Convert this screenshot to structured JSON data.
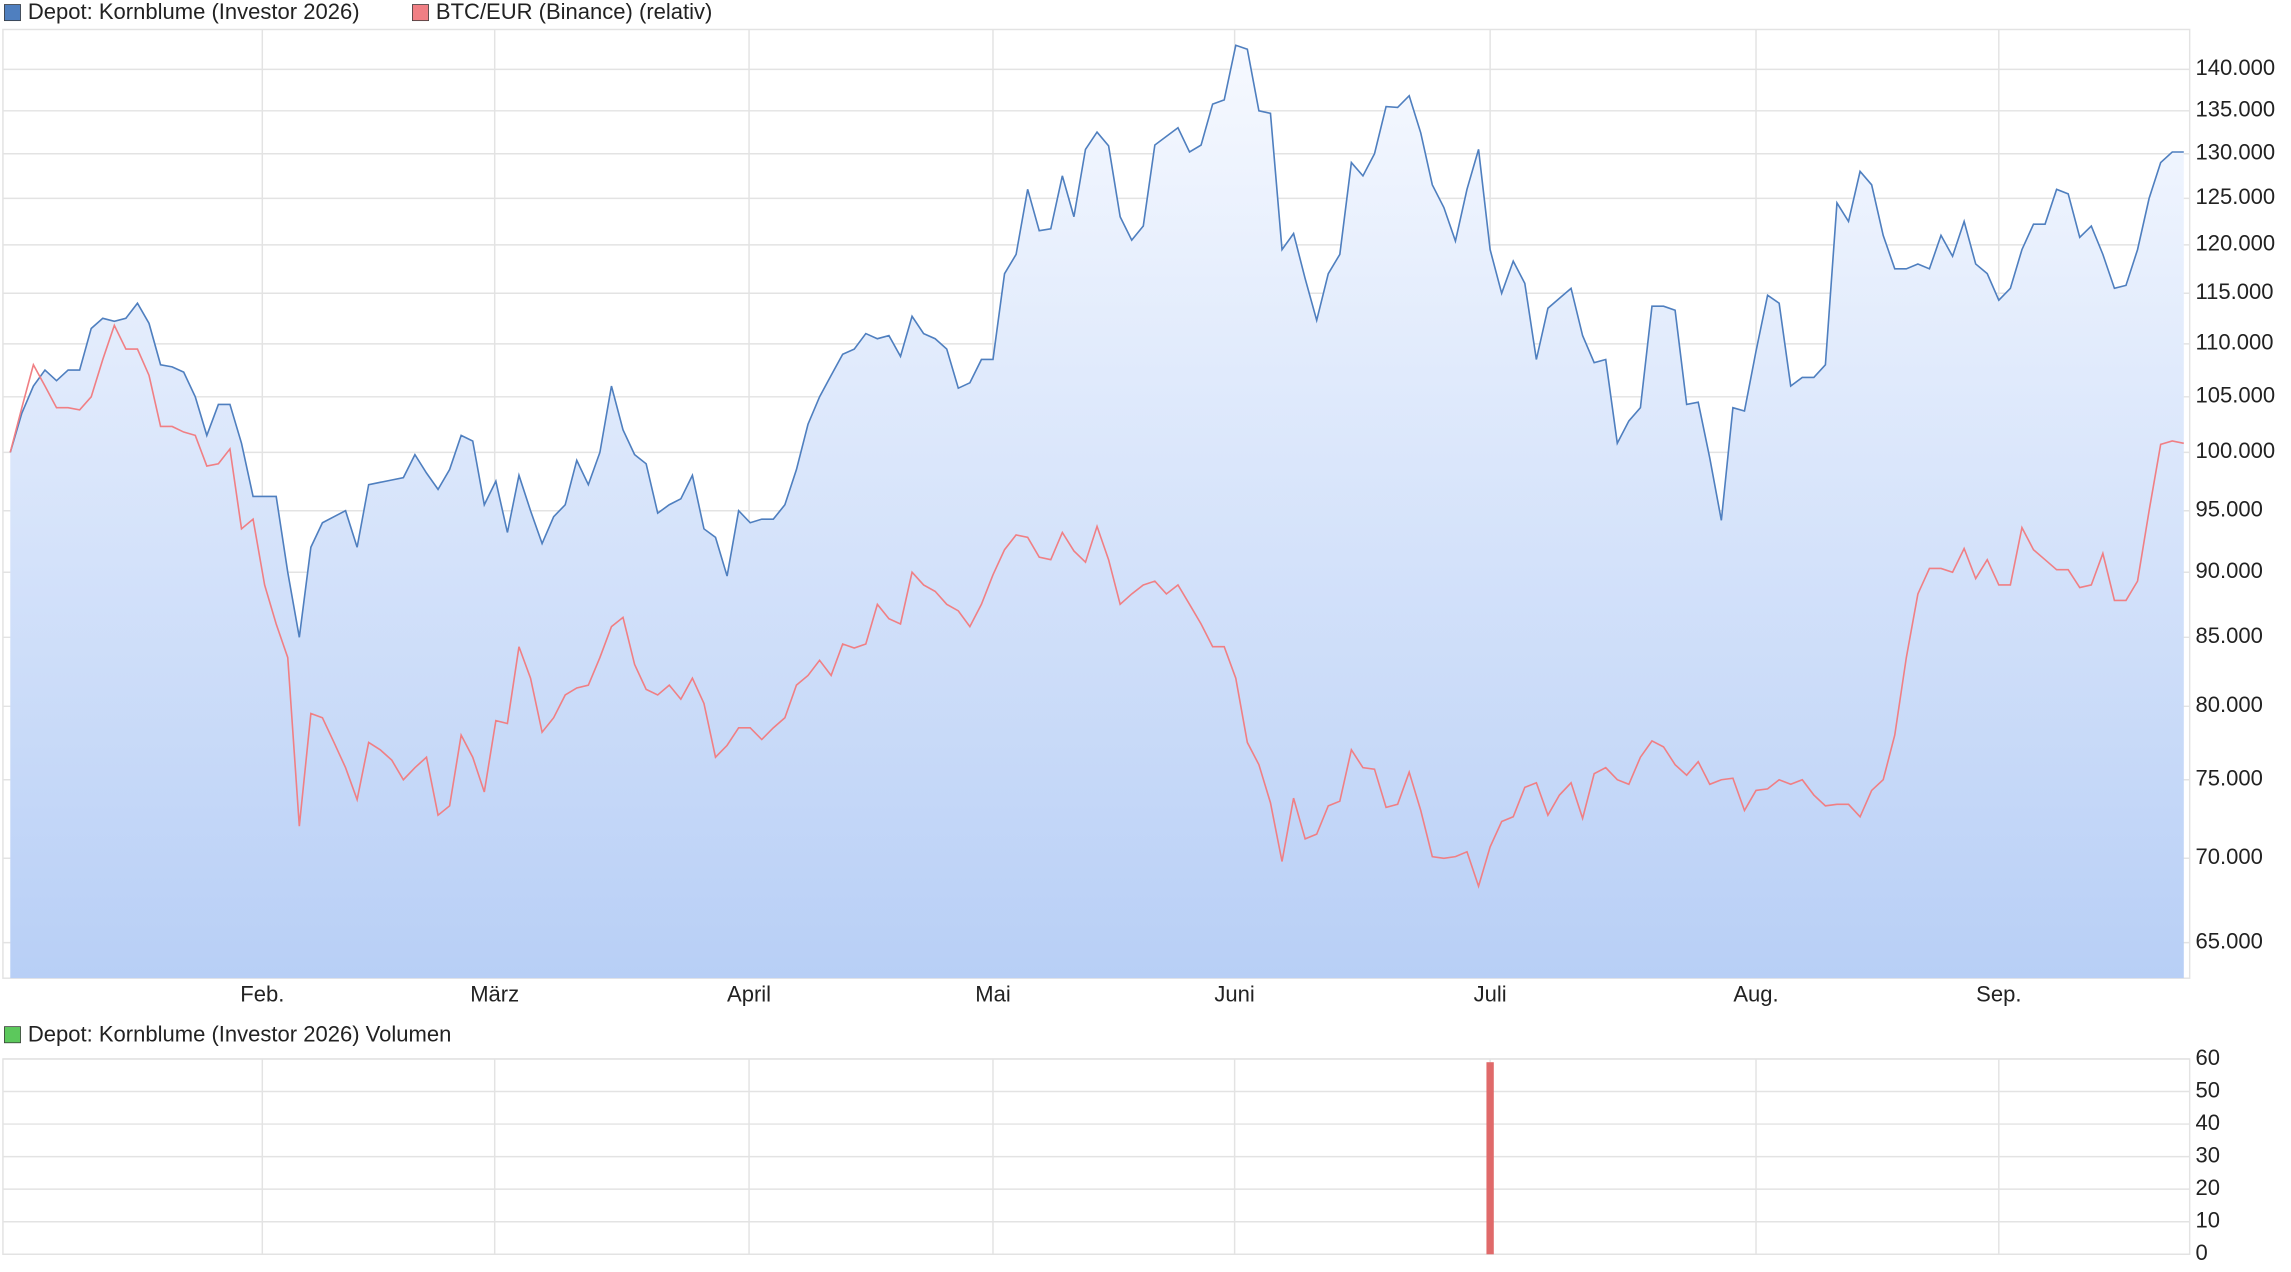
{
  "chart_data": [
    {
      "type": "line",
      "log": true,
      "xlim": [
        0,
        188
      ],
      "xticks": [
        {
          "value": 21.8,
          "label": "Feb."
        },
        {
          "value": 41.9,
          "label": "März"
        },
        {
          "value": 63.9,
          "label": "April"
        },
        {
          "value": 85,
          "label": "Mai"
        },
        {
          "value": 105.9,
          "label": "Juni"
        },
        {
          "value": 128,
          "label": "Juli"
        },
        {
          "value": 151,
          "label": "Aug."
        },
        {
          "value": 172,
          "label": "Sep."
        }
      ],
      "ylim": [
        63000,
        145000
      ],
      "yticks": [
        {
          "value": 65000,
          "label": "65.000"
        },
        {
          "value": 70000,
          "label": "70.000"
        },
        {
          "value": 75000,
          "label": "75.000"
        },
        {
          "value": 80000,
          "label": "80.000"
        },
        {
          "value": 85000,
          "label": "85.000"
        },
        {
          "value": 90000,
          "label": "90.000"
        },
        {
          "value": 95000,
          "label": "95.000"
        },
        {
          "value": 100000,
          "label": "100.000"
        },
        {
          "value": 105000,
          "label": "105.000"
        },
        {
          "value": 110000,
          "label": "110.000"
        },
        {
          "value": 115000,
          "label": "115.000"
        },
        {
          "value": 120000,
          "label": "120.000"
        },
        {
          "value": 125000,
          "label": "125.000"
        },
        {
          "value": 130000,
          "label": "130.000"
        },
        {
          "value": 135000,
          "label": "135.000"
        },
        {
          "value": 140000,
          "label": "140.000"
        }
      ],
      "grid": true,
      "series": [
        {
          "name": "Depot: Kornblume (Investor 2026)",
          "color": "#4f7fbf",
          "area": true,
          "values": [
            100000,
            103500,
            106000,
            107500,
            106500,
            107500,
            107500,
            111500,
            112500,
            112200,
            112500,
            114000,
            112000,
            108000,
            107800,
            107300,
            105000,
            101500,
            104300,
            104300,
            100800,
            96200,
            96200,
            96200,
            90000,
            85000,
            92000,
            94000,
            94500,
            95000,
            92000,
            97200,
            97400,
            97600,
            97800,
            99800,
            98200,
            96800,
            98500,
            101500,
            101000,
            95500,
            97500,
            93200,
            98000,
            95000,
            92300,
            94500,
            95500,
            99300,
            97200,
            100000,
            106000,
            102000,
            99800,
            99000,
            94800,
            95500,
            96000,
            98000,
            93500,
            92800,
            89700,
            95000,
            94000,
            94300,
            94300,
            95500,
            98500,
            102500,
            105000,
            107000,
            109000,
            109500,
            111000,
            110500,
            110800,
            108800,
            112700,
            111000,
            110500,
            109500,
            105800,
            106300,
            108500,
            108500,
            117000,
            119000,
            126000,
            121500,
            121700,
            127500,
            123000,
            130500,
            132500,
            130900,
            123000,
            120500,
            122000,
            131000,
            132000,
            133000,
            130200,
            131000,
            135800,
            136300,
            143000,
            142500,
            135000,
            134700,
            119500,
            121200,
            116500,
            112300,
            117000,
            119000,
            129000,
            127500,
            130000,
            135500,
            135400,
            136800,
            132400,
            126500,
            124000,
            120400,
            126000,
            130500,
            119500,
            115000,
            118300,
            116000,
            108500,
            113500,
            114500,
            115500,
            110800,
            108200,
            108500,
            100800,
            102800,
            104000,
            113700,
            113700,
            113300,
            104300,
            104500,
            99500,
            94200,
            104000,
            103700,
            109300,
            114800,
            114000,
            106000,
            106800,
            106800,
            108000,
            124500,
            122500,
            128000,
            126500,
            121000,
            117500,
            117500,
            118000,
            117500,
            121000,
            118800,
            122500,
            118000,
            117000,
            114300,
            115500,
            119500,
            122200,
            122200,
            126000,
            125500,
            120800,
            122000,
            119000,
            115500,
            115800,
            119500,
            125000,
            129000,
            130200,
            130200
          ]
        },
        {
          "name": "BTC/EUR (Binance) (relativ)",
          "color": "#f07f84",
          "values": [
            100000,
            104000,
            108000,
            106000,
            104000,
            104000,
            103800,
            105000,
            108500,
            111800,
            109500,
            109500,
            107000,
            102300,
            102300,
            101800,
            101500,
            98800,
            99000,
            100300,
            93500,
            94300,
            89000,
            86000,
            83500,
            72000,
            79500,
            79200,
            77500,
            75800,
            73700,
            77500,
            77000,
            76300,
            75000,
            75800,
            76500,
            72700,
            73300,
            78000,
            76500,
            74200,
            79000,
            78800,
            84300,
            82000,
            78200,
            79200,
            80800,
            81300,
            81500,
            83500,
            85800,
            86500,
            83000,
            81200,
            80800,
            81500,
            80500,
            82000,
            80200,
            76500,
            77300,
            78500,
            78500,
            77700,
            78500,
            79200,
            81500,
            82200,
            83300,
            82200,
            84500,
            84200,
            84500,
            87500,
            86400,
            86000,
            90000,
            89000,
            88500,
            87500,
            87000,
            85800,
            87500,
            89800,
            91800,
            93000,
            92800,
            91200,
            91000,
            93200,
            91700,
            90800,
            93700,
            91000,
            87500,
            88300,
            89000,
            89300,
            88300,
            89000,
            87500,
            86000,
            84300,
            84300,
            82000,
            77500,
            76000,
            73500,
            69800,
            73800,
            71200,
            71500,
            73300,
            73600,
            77000,
            75800,
            75700,
            73200,
            73400,
            75500,
            73000,
            70100,
            70000,
            70100,
            70400,
            68300,
            70700,
            72300,
            72600,
            74500,
            74800,
            72700,
            74000,
            74800,
            72500,
            75400,
            75800,
            75000,
            74700,
            76500,
            77600,
            77200,
            76000,
            75300,
            76200,
            74700,
            75000,
            75100,
            73000,
            74300,
            74400,
            75000,
            74700,
            75000,
            74000,
            73300,
            73400,
            73400,
            72600,
            74300,
            75000,
            78000,
            83500,
            88300,
            90300,
            90300,
            90000,
            91900,
            89500,
            91000,
            89000,
            89000,
            93600,
            91800,
            91000,
            90200,
            90200,
            88800,
            89000,
            91500,
            87800,
            87800,
            89300,
            95000,
            100700,
            101000,
            100800
          ]
        }
      ]
    },
    {
      "type": "bar",
      "series": [
        {
          "name": "Depot: Kornblume (Investor 2026) Volumen",
          "color": "#5cc85c",
          "bar_color": "#e06a6a",
          "x": [
            128
          ],
          "values": [
            59
          ]
        }
      ],
      "xlim": [
        0,
        188
      ],
      "ylim": [
        0,
        60
      ],
      "yticks": [
        0,
        10,
        20,
        30,
        40,
        50,
        60
      ],
      "grid": true
    }
  ]
}
